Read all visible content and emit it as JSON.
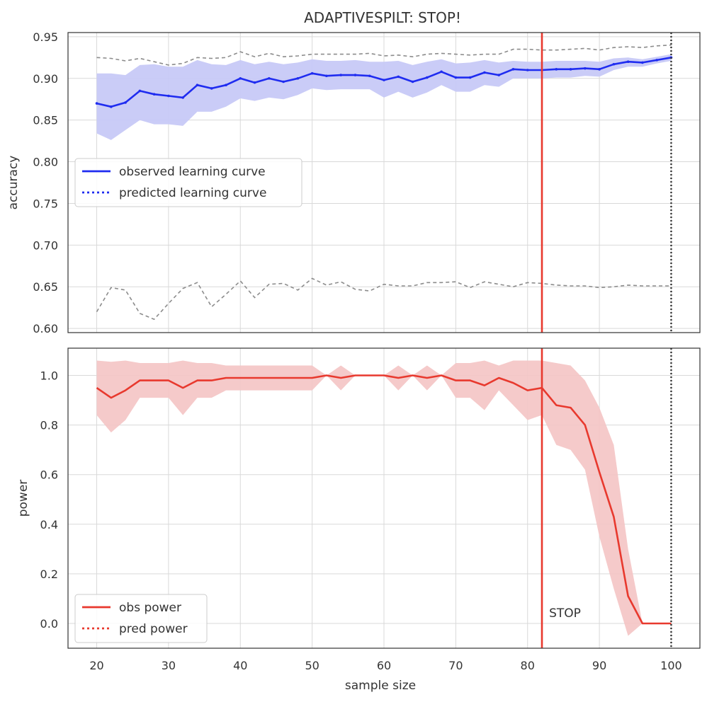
{
  "title": "ADAPTIVESPILT: STOP!",
  "colors": {
    "blue": "#1f2cf0",
    "red": "#e8392e",
    "band_blue": "#c7c9f7",
    "band_red": "#f4c4c4",
    "ci_gray": "#8c8c8c",
    "grid": "#d9d9d9"
  },
  "chart_data": [
    {
      "type": "line",
      "panel": "top",
      "ylabel": "accuracy",
      "xlim": [
        16,
        104
      ],
      "ylim": [
        0.595,
        0.955
      ],
      "yticks": [
        0.6,
        0.65,
        0.7,
        0.75,
        0.8,
        0.85,
        0.9,
        0.95
      ],
      "ytick_labels": [
        "0.60",
        "0.65",
        "0.70",
        "0.75",
        "0.80",
        "0.85",
        "0.90",
        "0.95"
      ],
      "grid": true,
      "legend_position": "center-left",
      "legend": [
        {
          "label": "observed learning curve",
          "color": "#1f2cf0",
          "style": "solid"
        },
        {
          "label": "predicted learning curve",
          "color": "#1f2cf0",
          "style": "dotted"
        }
      ],
      "x": [
        20,
        22,
        24,
        26,
        28,
        30,
        32,
        34,
        36,
        38,
        40,
        42,
        44,
        46,
        48,
        50,
        52,
        54,
        56,
        58,
        60,
        62,
        64,
        66,
        68,
        70,
        72,
        74,
        76,
        78,
        80,
        82,
        84,
        86,
        88,
        90,
        92,
        94,
        96,
        98,
        100
      ],
      "series": [
        {
          "role": "observed",
          "values": [
            0.87,
            0.866,
            0.871,
            0.885,
            0.881,
            0.879,
            0.877,
            0.892,
            0.888,
            0.892,
            0.9,
            0.895,
            0.9,
            0.896,
            0.9,
            0.906,
            0.903,
            0.904,
            0.904,
            0.903,
            0.898,
            0.902,
            0.896,
            0.901,
            0.908,
            0.901,
            0.901,
            0.907,
            0.904,
            0.911,
            0.91,
            0.91,
            0.911,
            0.911,
            0.912,
            0.911,
            0.917,
            0.92,
            0.919,
            0.922,
            0.925
          ]
        },
        {
          "role": "band_upper",
          "values": [
            0.906,
            0.906,
            0.904,
            0.916,
            0.917,
            0.914,
            0.914,
            0.922,
            0.917,
            0.916,
            0.922,
            0.917,
            0.92,
            0.917,
            0.919,
            0.923,
            0.921,
            0.921,
            0.922,
            0.92,
            0.92,
            0.921,
            0.916,
            0.92,
            0.923,
            0.918,
            0.919,
            0.922,
            0.919,
            0.921,
            0.92,
            0.92,
            0.921,
            0.921,
            0.921,
            0.92,
            0.924,
            0.925,
            0.923,
            0.926,
            0.929
          ]
        },
        {
          "role": "band_lower",
          "values": [
            0.834,
            0.826,
            0.838,
            0.85,
            0.845,
            0.845,
            0.843,
            0.86,
            0.86,
            0.866,
            0.876,
            0.873,
            0.877,
            0.875,
            0.88,
            0.888,
            0.886,
            0.887,
            0.887,
            0.887,
            0.877,
            0.884,
            0.877,
            0.883,
            0.892,
            0.884,
            0.884,
            0.892,
            0.89,
            0.9,
            0.9,
            0.9,
            0.901,
            0.901,
            0.903,
            0.902,
            0.91,
            0.914,
            0.914,
            0.918,
            0.921
          ]
        },
        {
          "role": "ci_upper_dashed",
          "values": [
            0.925,
            0.924,
            0.921,
            0.924,
            0.92,
            0.916,
            0.918,
            0.925,
            0.924,
            0.925,
            0.932,
            0.926,
            0.93,
            0.926,
            0.927,
            0.929,
            0.929,
            0.929,
            0.929,
            0.93,
            0.927,
            0.928,
            0.926,
            0.929,
            0.93,
            0.929,
            0.928,
            0.929,
            0.929,
            0.935,
            0.935,
            0.934,
            0.934,
            0.935,
            0.936,
            0.934,
            0.937,
            0.938,
            0.937,
            0.939,
            0.94
          ]
        },
        {
          "role": "ci_lower_dashed",
          "values": [
            0.62,
            0.649,
            0.646,
            0.618,
            0.611,
            0.63,
            0.648,
            0.655,
            0.626,
            0.641,
            0.657,
            0.637,
            0.653,
            0.654,
            0.646,
            0.66,
            0.652,
            0.656,
            0.647,
            0.645,
            0.653,
            0.651,
            0.651,
            0.655,
            0.655,
            0.656,
            0.649,
            0.656,
            0.653,
            0.65,
            0.655,
            0.654,
            0.652,
            0.651,
            0.651,
            0.649,
            0.65,
            0.652,
            0.651,
            0.651,
            0.651
          ]
        }
      ]
    },
    {
      "type": "line",
      "panel": "bottom",
      "xlabel": "sample size",
      "ylabel": "power",
      "xlim": [
        16,
        104
      ],
      "ylim": [
        -0.1,
        1.11
      ],
      "xticks": [
        20,
        30,
        40,
        50,
        60,
        70,
        80,
        90,
        100
      ],
      "yticks": [
        0.0,
        0.2,
        0.4,
        0.6,
        0.8,
        1.0
      ],
      "ytick_labels": [
        "0.0",
        "0.2",
        "0.4",
        "0.6",
        "0.8",
        "1.0"
      ],
      "grid": true,
      "legend_position": "lower-left",
      "legend": [
        {
          "label": "obs power",
          "color": "#e8392e",
          "style": "solid"
        },
        {
          "label": "pred power",
          "color": "#e8392e",
          "style": "dotted"
        }
      ],
      "annotation": {
        "text": "STOP",
        "x": 82.6,
        "y": 0.02
      },
      "x": [
        20,
        22,
        24,
        26,
        28,
        30,
        32,
        34,
        36,
        38,
        40,
        42,
        44,
        46,
        48,
        50,
        52,
        54,
        56,
        58,
        60,
        62,
        64,
        66,
        68,
        70,
        72,
        74,
        76,
        78,
        80,
        82,
        84,
        86,
        88,
        90,
        92,
        94,
        96,
        98,
        100
      ],
      "series": [
        {
          "role": "observed",
          "values": [
            0.95,
            0.91,
            0.94,
            0.98,
            0.98,
            0.98,
            0.95,
            0.98,
            0.98,
            0.99,
            0.99,
            0.99,
            0.99,
            0.99,
            0.99,
            0.99,
            1.0,
            0.99,
            1.0,
            1.0,
            1.0,
            0.99,
            1.0,
            0.99,
            1.0,
            0.98,
            0.98,
            0.96,
            0.99,
            0.97,
            0.94,
            0.95,
            0.88,
            0.87,
            0.8,
            0.61,
            0.43,
            0.11,
            0.0,
            0.0,
            0.0
          ]
        },
        {
          "role": "band_upper",
          "values": [
            1.06,
            1.055,
            1.06,
            1.05,
            1.05,
            1.05,
            1.06,
            1.05,
            1.05,
            1.04,
            1.04,
            1.04,
            1.04,
            1.04,
            1.04,
            1.04,
            1.0,
            1.04,
            1.0,
            1.0,
            1.0,
            1.04,
            1.0,
            1.04,
            1.0,
            1.05,
            1.05,
            1.06,
            1.04,
            1.06,
            1.06,
            1.06,
            1.05,
            1.04,
            0.98,
            0.87,
            0.72,
            0.3,
            0.0,
            0.0,
            0.0
          ]
        },
        {
          "role": "band_lower",
          "values": [
            0.84,
            0.77,
            0.82,
            0.91,
            0.91,
            0.91,
            0.84,
            0.91,
            0.91,
            0.94,
            0.94,
            0.94,
            0.94,
            0.94,
            0.94,
            0.94,
            1.0,
            0.94,
            1.0,
            1.0,
            1.0,
            0.94,
            1.0,
            0.94,
            1.0,
            0.91,
            0.91,
            0.86,
            0.94,
            0.88,
            0.82,
            0.84,
            0.72,
            0.7,
            0.62,
            0.35,
            0.14,
            -0.05,
            0.0,
            0.0,
            0.0
          ]
        }
      ]
    }
  ],
  "stop_line": {
    "x": 82,
    "color": "#e8392e"
  },
  "end_line": {
    "x": 100,
    "color": "#333333"
  }
}
